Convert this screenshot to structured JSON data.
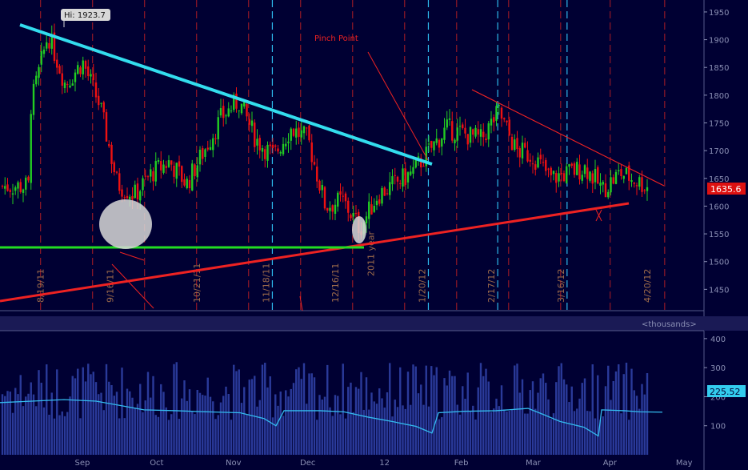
{
  "chart_data": [
    {
      "type": "candlestick",
      "name": "price",
      "hi_label": "Hi: 1923.7",
      "last_price_label": "1635.6",
      "annotation": "Pinch Point",
      "year_label": "2011 year",
      "ylim": [
        1400,
        1960
      ],
      "y_ticks": [
        1450,
        1500,
        1550,
        1600,
        1650,
        1700,
        1750,
        1800,
        1850,
        1900,
        1950
      ],
      "months": [
        "Sep",
        "Oct",
        "Nov",
        "Dec",
        "12",
        "Feb",
        "Mar",
        "Apr",
        "May"
      ],
      "expiry_dates": [
        "8/19/11",
        "9/16/11",
        "10/21/11",
        "11/18/11",
        "12/16/11",
        "1/20/12",
        "2/17/12",
        "3/16/12",
        "4/20/12"
      ],
      "candles_approx": [
        {
          "date": "2011-08-15",
          "close": 1780
        },
        {
          "date": "2011-08-22",
          "close": 1910
        },
        {
          "date": "2011-08-29",
          "close": 1820
        },
        {
          "date": "2011-09-05",
          "close": 1860
        },
        {
          "date": "2011-09-12",
          "close": 1780
        },
        {
          "date": "2011-09-19",
          "close": 1640
        },
        {
          "date": "2011-09-26",
          "close": 1620
        },
        {
          "date": "2011-10-03",
          "close": 1660
        },
        {
          "date": "2011-10-10",
          "close": 1680
        },
        {
          "date": "2011-10-17",
          "close": 1640
        },
        {
          "date": "2011-10-24",
          "close": 1700
        },
        {
          "date": "2011-10-31",
          "close": 1760
        },
        {
          "date": "2011-11-07",
          "close": 1790
        },
        {
          "date": "2011-11-14",
          "close": 1720
        },
        {
          "date": "2011-11-21",
          "close": 1690
        },
        {
          "date": "2011-11-28",
          "close": 1740
        },
        {
          "date": "2011-12-05",
          "close": 1720
        },
        {
          "date": "2011-12-12",
          "close": 1600
        },
        {
          "date": "2011-12-19",
          "close": 1610
        },
        {
          "date": "2011-12-26",
          "close": 1560
        },
        {
          "date": "2012-01-02",
          "close": 1620
        },
        {
          "date": "2012-01-09",
          "close": 1640
        },
        {
          "date": "2012-01-16",
          "close": 1660
        },
        {
          "date": "2012-01-23",
          "close": 1700
        },
        {
          "date": "2012-01-30",
          "close": 1740
        },
        {
          "date": "2012-02-06",
          "close": 1730
        },
        {
          "date": "2012-02-13",
          "close": 1720
        },
        {
          "date": "2012-02-20",
          "close": 1770
        },
        {
          "date": "2012-02-27",
          "close": 1700
        },
        {
          "date": "2012-03-05",
          "close": 1690
        },
        {
          "date": "2012-03-12",
          "close": 1650
        },
        {
          "date": "2012-03-19",
          "close": 1660
        },
        {
          "date": "2012-03-26",
          "close": 1670
        },
        {
          "date": "2012-04-02",
          "close": 1630
        },
        {
          "date": "2012-04-09",
          "close": 1660
        },
        {
          "date": "2012-04-16",
          "close": 1645
        },
        {
          "date": "2012-04-20",
          "close": 1636
        }
      ]
    },
    {
      "type": "bar",
      "name": "volume",
      "unit_label": "<thousands>",
      "last_value_label": "225.52",
      "ylim": [
        0,
        430
      ],
      "y_ticks": [
        100,
        200,
        300,
        400
      ]
    }
  ],
  "colors": {
    "background": "#000033",
    "grid_red": "#cc2222",
    "grid_cyan": "#33ccff",
    "downtrend_line": "#33ddee",
    "uptrend_line": "#ee2222",
    "support_line": "#22dd22",
    "up_candle": "#22cc22",
    "down_candle": "#ee1111",
    "volume_bar": "#2a3a9a",
    "volume_line": "#33bbee"
  }
}
